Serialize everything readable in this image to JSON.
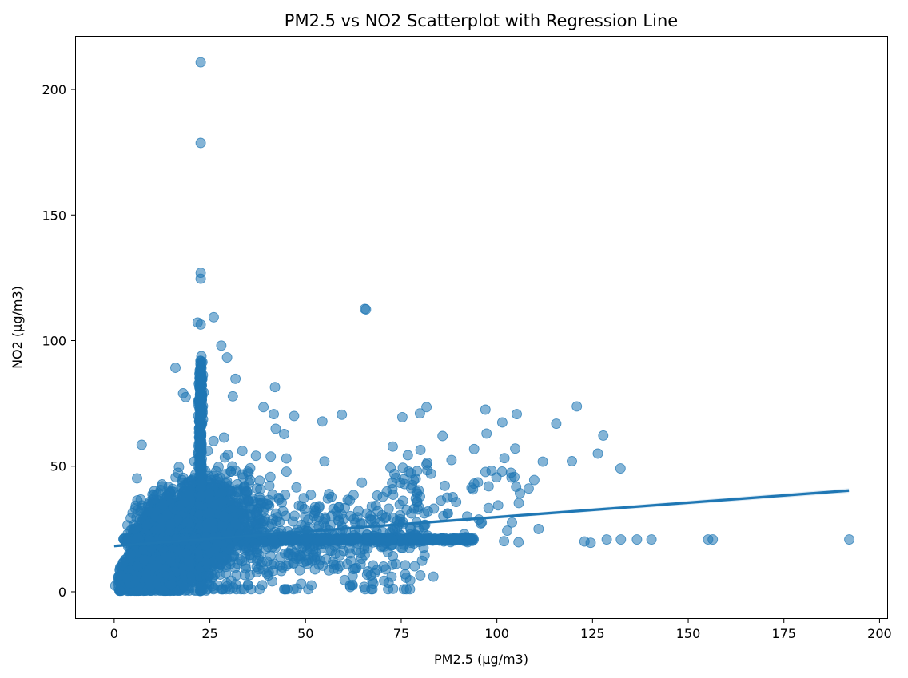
{
  "chart_data": {
    "type": "scatter",
    "title": "PM2.5 vs NO2 Scatterplot with Regression Line",
    "xlabel": "PM2.5 (µg/m3)",
    "ylabel": "NO2 (µg/m3)",
    "xlim": [
      -10,
      202
    ],
    "ylim": [
      -10.5,
      221
    ],
    "x_ticks": [
      0,
      25,
      50,
      75,
      100,
      125,
      150,
      175,
      200
    ],
    "y_ticks": [
      0,
      50,
      100,
      150,
      200
    ],
    "grid": false,
    "legend": "none",
    "colors": {
      "points": "#1f77b4",
      "line": "#1f77b4",
      "band": "#1f77b4"
    },
    "point_alpha": 0.55,
    "regression": {
      "x": [
        0,
        192
      ],
      "y": [
        18.2,
        40.3
      ],
      "ci_halfwidth": [
        0.4,
        0.9
      ]
    },
    "outliers": [
      [
        22.6,
        210.8
      ],
      [
        22.6,
        178.7
      ],
      [
        22.6,
        127.0
      ],
      [
        22.6,
        124.6
      ],
      [
        26.0,
        109.3
      ],
      [
        21.8,
        107.2
      ],
      [
        22.6,
        106.4
      ],
      [
        65.8,
        112.4
      ],
      [
        28.0,
        98.0
      ],
      [
        29.5,
        93.3
      ],
      [
        22.8,
        93.8
      ],
      [
        16.0,
        89.2
      ],
      [
        31.7,
        84.8
      ],
      [
        42.0,
        81.5
      ],
      [
        18.0,
        79.0
      ],
      [
        18.7,
        77.5
      ],
      [
        31.0,
        77.8
      ],
      [
        39.0,
        73.5
      ],
      [
        120.9,
        73.8
      ],
      [
        97.0,
        72.5
      ],
      [
        115.5,
        66.9
      ],
      [
        41.7,
        70.7
      ],
      [
        47.0,
        70.0
      ],
      [
        59.5,
        70.5
      ],
      [
        79.9,
        71.0
      ],
      [
        81.6,
        73.5
      ],
      [
        101.4,
        67.4
      ],
      [
        105.2,
        70.7
      ],
      [
        127.8,
        62.2
      ],
      [
        132.3,
        49.1
      ],
      [
        65.5,
        112.6
      ],
      [
        44.4,
        62.8
      ],
      [
        54.4,
        67.8
      ],
      [
        7.2,
        58.5
      ],
      [
        42.2,
        64.9
      ],
      [
        72.8,
        57.8
      ],
      [
        85.8,
        62.0
      ],
      [
        97.3,
        63.0
      ],
      [
        112.0,
        51.8
      ],
      [
        119.6,
        52.0
      ],
      [
        126.4,
        55.0
      ],
      [
        104.8,
        57.0
      ],
      [
        110.9,
        25.0
      ],
      [
        122.9,
        20.0
      ],
      [
        124.5,
        19.5
      ],
      [
        128.7,
        20.8
      ],
      [
        132.4,
        20.8
      ],
      [
        136.6,
        20.8
      ],
      [
        140.4,
        20.8
      ],
      [
        155.2,
        20.8
      ],
      [
        156.4,
        20.8
      ],
      [
        192.1,
        20.8
      ],
      [
        83.4,
        6.0
      ],
      [
        80.0,
        6.5
      ],
      [
        62.3,
        6.3
      ],
      [
        66.1,
        6.8
      ],
      [
        70.4,
        10.0
      ],
      [
        45.2,
        1.0
      ],
      [
        35.0,
        2.5
      ],
      [
        0.3,
        2.4
      ]
    ]
  }
}
